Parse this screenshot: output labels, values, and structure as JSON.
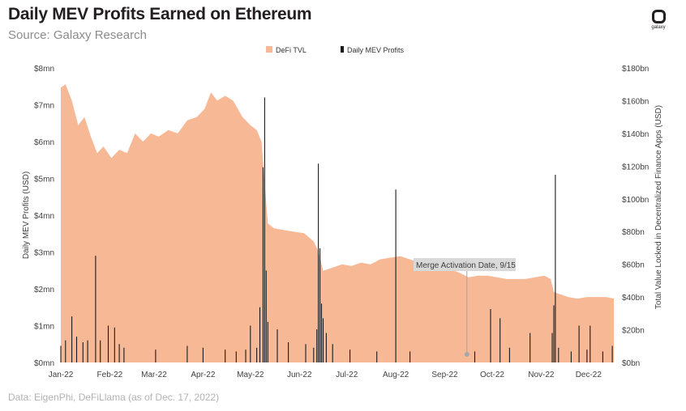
{
  "header": {
    "title": "Daily MEV Profits Earned on Ethereum",
    "subtitle": "Source: Galaxy Research",
    "logo_text": "galaxy"
  },
  "footer": {
    "note": "Data: EigenPhi, DeFiLlama (as of Dec. 17, 2022)"
  },
  "colors": {
    "tvl": "#f7b896",
    "mev": "#1a1a1a",
    "annotation_box": "#d9d9d9",
    "annotation_line": "#a6a6a6"
  },
  "chart_data": {
    "type": "area",
    "x_range": [
      "2022-01-01",
      "2022-12-17"
    ],
    "xticks": [
      "Jan-22",
      "Feb-22",
      "Mar-22",
      "Apr-22",
      "May-22",
      "Jun-22",
      "Jul-22",
      "Aug-22",
      "Sep-22",
      "Oct-22",
      "Nov-22",
      "Dec-22"
    ],
    "y_left": {
      "label": "Daily MEV Profits (USD)",
      "range": [
        0,
        8
      ],
      "ticks": [
        "$0mn",
        "$1mn",
        "$2mn",
        "$3mn",
        "$4mn",
        "$5mn",
        "$6mn",
        "$7mn",
        "$8mn"
      ]
    },
    "y_right": {
      "label": "Total Value Locked in Decentralized Finance Apps (USD)",
      "range": [
        0,
        180
      ],
      "ticks": [
        "$0bn",
        "$20bn",
        "$40bn",
        "$60bn",
        "$80bn",
        "$100bn",
        "$120bn",
        "$140bn",
        "$160bn",
        "$180bn"
      ]
    },
    "legend": [
      "DeFi TVL",
      "Daily MEV Profits"
    ],
    "legend_position": "top-center",
    "grid": false,
    "series": [
      {
        "name": "DeFi TVL",
        "axis": "right",
        "x": [
          "2022-01-01",
          "2022-01-04",
          "2022-01-08",
          "2022-01-12",
          "2022-01-16",
          "2022-01-20",
          "2022-01-24",
          "2022-01-28",
          "2022-02-02",
          "2022-02-07",
          "2022-02-12",
          "2022-02-17",
          "2022-02-22",
          "2022-02-27",
          "2022-03-04",
          "2022-03-10",
          "2022-03-16",
          "2022-03-22",
          "2022-03-28",
          "2022-04-02",
          "2022-04-06",
          "2022-04-10",
          "2022-04-15",
          "2022-04-20",
          "2022-04-26",
          "2022-05-01",
          "2022-05-05",
          "2022-05-08",
          "2022-05-10",
          "2022-05-12",
          "2022-05-16",
          "2022-05-22",
          "2022-05-28",
          "2022-06-04",
          "2022-06-10",
          "2022-06-13",
          "2022-06-16",
          "2022-06-22",
          "2022-06-28",
          "2022-07-04",
          "2022-07-10",
          "2022-07-16",
          "2022-07-22",
          "2022-07-28",
          "2022-08-04",
          "2022-08-10",
          "2022-08-16",
          "2022-08-22",
          "2022-08-28",
          "2022-09-04",
          "2022-09-10",
          "2022-09-16",
          "2022-09-22",
          "2022-09-28",
          "2022-10-04",
          "2022-10-10",
          "2022-10-16",
          "2022-10-22",
          "2022-10-28",
          "2022-11-03",
          "2022-11-07",
          "2022-11-09",
          "2022-11-12",
          "2022-11-18",
          "2022-11-24",
          "2022-11-30",
          "2022-12-06",
          "2022-12-12",
          "2022-12-17"
        ],
        "values": [
          168,
          170,
          160,
          145,
          150,
          138,
          128,
          132,
          125,
          130,
          128,
          140,
          135,
          140,
          138,
          142,
          140,
          148,
          150,
          155,
          165,
          160,
          163,
          160,
          150,
          145,
          142,
          135,
          110,
          85,
          82,
          81,
          80,
          79,
          74,
          68,
          56,
          58,
          60,
          59,
          61,
          60,
          63,
          64,
          65,
          63,
          61,
          60,
          57,
          57,
          55,
          52,
          53,
          53,
          52,
          51,
          51,
          51,
          52,
          53,
          51,
          43,
          42,
          40,
          39,
          40,
          40,
          40,
          39
        ]
      },
      {
        "name": "Daily MEV Profits",
        "axis": "left",
        "spikes": [
          {
            "x": "2022-01-01",
            "y": 0.45
          },
          {
            "x": "2022-01-04",
            "y": 0.6
          },
          {
            "x": "2022-01-08",
            "y": 1.25
          },
          {
            "x": "2022-01-11",
            "y": 0.7
          },
          {
            "x": "2022-01-15",
            "y": 0.55
          },
          {
            "x": "2022-01-18",
            "y": 0.6
          },
          {
            "x": "2022-01-23",
            "y": 2.9
          },
          {
            "x": "2022-01-26",
            "y": 0.6
          },
          {
            "x": "2022-01-31",
            "y": 1.0
          },
          {
            "x": "2022-02-04",
            "y": 0.95
          },
          {
            "x": "2022-02-07",
            "y": 0.5
          },
          {
            "x": "2022-02-10",
            "y": 0.4
          },
          {
            "x": "2022-03-02",
            "y": 0.35
          },
          {
            "x": "2022-03-22",
            "y": 0.45
          },
          {
            "x": "2022-04-01",
            "y": 0.4
          },
          {
            "x": "2022-04-15",
            "y": 0.35
          },
          {
            "x": "2022-04-22",
            "y": 0.3
          },
          {
            "x": "2022-04-28",
            "y": 0.35
          },
          {
            "x": "2022-05-01",
            "y": 1.0
          },
          {
            "x": "2022-05-05",
            "y": 0.4
          },
          {
            "x": "2022-05-07",
            "y": 1.5
          },
          {
            "x": "2022-05-09",
            "y": 5.3
          },
          {
            "x": "2022-05-10",
            "y": 7.2
          },
          {
            "x": "2022-05-11",
            "y": 2.5
          },
          {
            "x": "2022-05-12",
            "y": 1.1
          },
          {
            "x": "2022-05-18",
            "y": 0.9
          },
          {
            "x": "2022-05-25",
            "y": 0.55
          },
          {
            "x": "2022-06-05",
            "y": 0.5
          },
          {
            "x": "2022-06-10",
            "y": 0.4
          },
          {
            "x": "2022-06-12",
            "y": 0.9
          },
          {
            "x": "2022-06-13",
            "y": 5.4
          },
          {
            "x": "2022-06-14",
            "y": 3.1
          },
          {
            "x": "2022-06-15",
            "y": 1.6
          },
          {
            "x": "2022-06-16",
            "y": 1.2
          },
          {
            "x": "2022-06-18",
            "y": 0.8
          },
          {
            "x": "2022-06-22",
            "y": 0.5
          },
          {
            "x": "2022-07-03",
            "y": 0.35
          },
          {
            "x": "2022-07-20",
            "y": 0.3
          },
          {
            "x": "2022-08-01",
            "y": 4.7
          },
          {
            "x": "2022-08-10",
            "y": 0.3
          },
          {
            "x": "2022-09-20",
            "y": 0.3
          },
          {
            "x": "2022-09-30",
            "y": 1.45
          },
          {
            "x": "2022-10-06",
            "y": 1.2
          },
          {
            "x": "2022-10-12",
            "y": 0.4
          },
          {
            "x": "2022-10-25",
            "y": 0.8
          },
          {
            "x": "2022-11-08",
            "y": 0.8
          },
          {
            "x": "2022-11-09",
            "y": 1.55
          },
          {
            "x": "2022-11-10",
            "y": 5.1
          },
          {
            "x": "2022-11-12",
            "y": 0.4
          },
          {
            "x": "2022-11-20",
            "y": 0.3
          },
          {
            "x": "2022-11-25",
            "y": 1.0
          },
          {
            "x": "2022-11-30",
            "y": 0.35
          },
          {
            "x": "2022-12-02",
            "y": 1.0
          },
          {
            "x": "2022-12-10",
            "y": 0.3
          },
          {
            "x": "2022-12-16",
            "y": 0.45
          }
        ]
      }
    ],
    "annotations": [
      {
        "text": "Merge Activation Date, 9/15",
        "x": "2022-09-15"
      }
    ]
  }
}
